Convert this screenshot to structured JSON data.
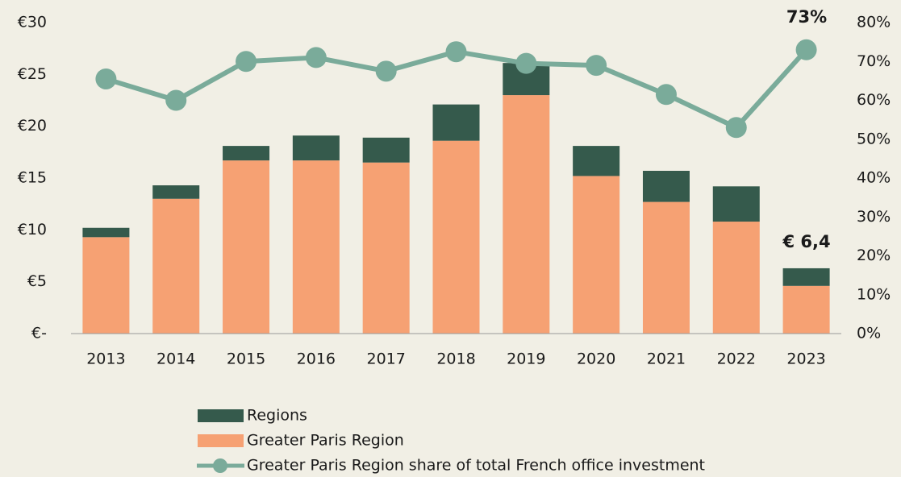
{
  "chart_data": {
    "type": "bar",
    "categories": [
      "2013",
      "2014",
      "2015",
      "2016",
      "2017",
      "2018",
      "2019",
      "2020",
      "2021",
      "2022",
      "2023"
    ],
    "series": [
      {
        "name": "Regions",
        "color": "#355a4c",
        "values": [
          0.9,
          1.3,
          1.4,
          2.4,
          2.4,
          3.5,
          3.1,
          2.9,
          3.0,
          3.4,
          1.7
        ]
      },
      {
        "name": "Greater Paris Region",
        "color": "#f6a173",
        "values": [
          9.3,
          13.0,
          16.7,
          16.7,
          16.5,
          18.6,
          23.0,
          15.2,
          12.7,
          10.8,
          4.6
        ]
      },
      {
        "name": "Greater Paris Region share of total French office investment",
        "color": "#7aab9a",
        "type": "line",
        "axis": "y2",
        "values": [
          65.5,
          60,
          70,
          71,
          67.5,
          72.5,
          69.5,
          69,
          61.5,
          53,
          73
        ]
      }
    ],
    "ylim": [
      0,
      30
    ],
    "yticks": [
      {
        "value": 0,
        "label": "€-"
      },
      {
        "value": 5,
        "label": "€5"
      },
      {
        "value": 10,
        "label": "€10"
      },
      {
        "value": 15,
        "label": "€15"
      },
      {
        "value": 20,
        "label": "€20"
      },
      {
        "value": 25,
        "label": "€25"
      },
      {
        "value": 30,
        "label": "€30"
      }
    ],
    "y2lim": [
      0,
      80
    ],
    "y2ticks": [
      {
        "value": 0,
        "label": "0%"
      },
      {
        "value": 10,
        "label": "10%"
      },
      {
        "value": 20,
        "label": "20%"
      },
      {
        "value": 30,
        "label": "30%"
      },
      {
        "value": 40,
        "label": "40%"
      },
      {
        "value": 50,
        "label": "50%"
      },
      {
        "value": 60,
        "label": "60%"
      },
      {
        "value": 70,
        "label": "70%"
      },
      {
        "value": 80,
        "label": "80%"
      }
    ],
    "annotations": [
      "73%",
      "€ 6,4"
    ],
    "legend": "bottom"
  }
}
